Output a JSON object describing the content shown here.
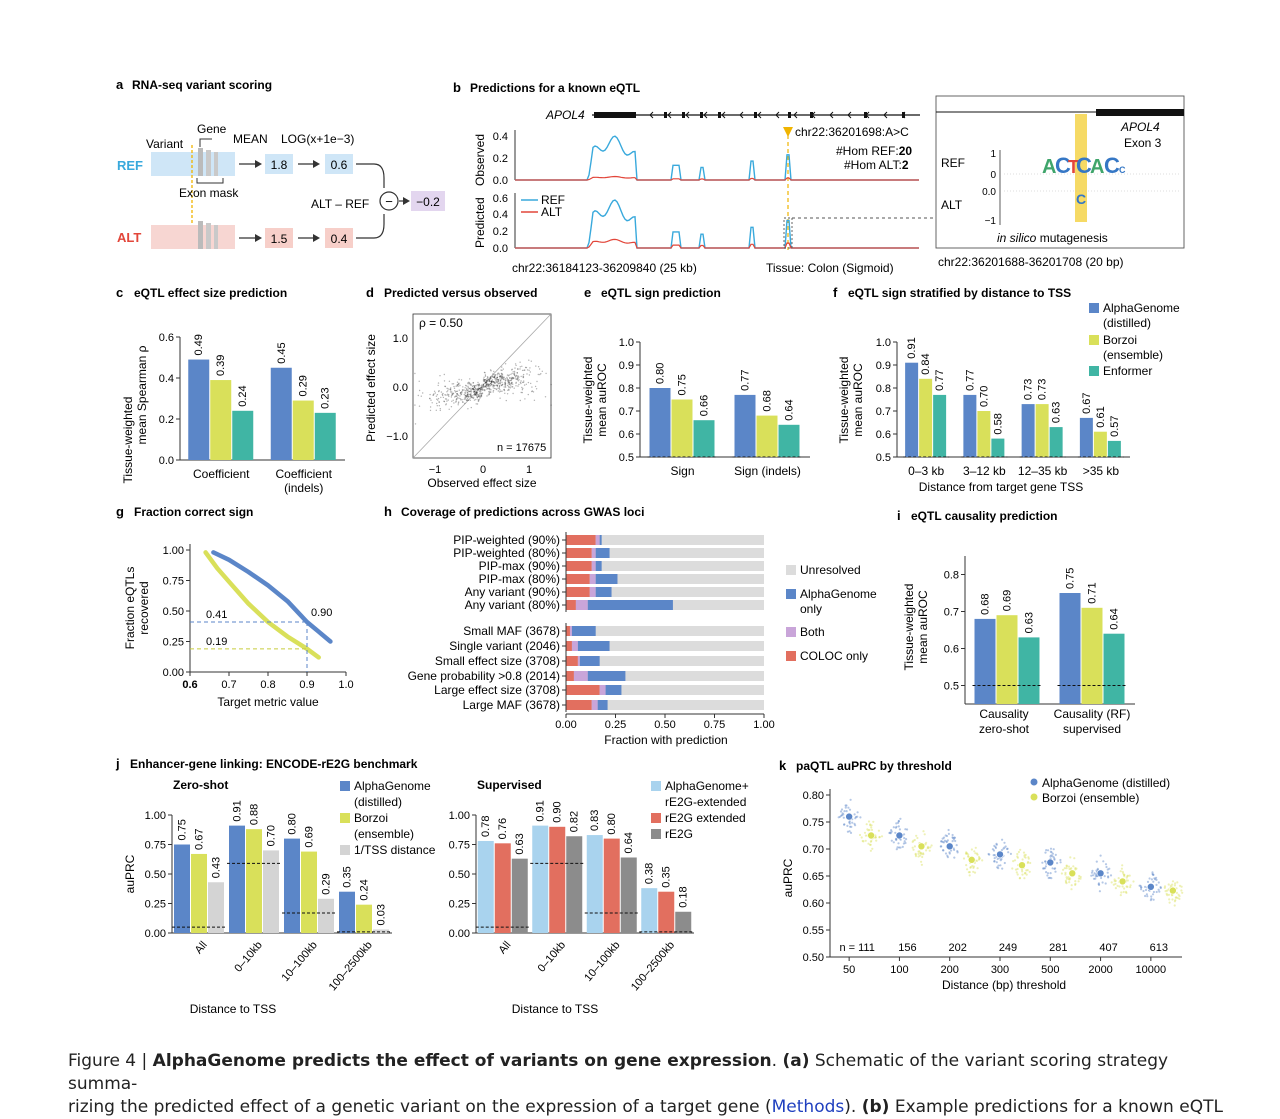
{
  "colors": {
    "alphagenome": "#5b86c8",
    "borzoi": "#d9e05a",
    "enformer": "#40b5a4",
    "unresolved": "#dcdcdc",
    "alpha_only": "#5b86c8",
    "both": "#c9a5d9",
    "coloc": "#e26f5f",
    "ref": "#39a9dc",
    "alt": "#e2463a",
    "gray": "#8c8c8c",
    "lightgray": "#d4d4d4",
    "lightblue": "#a9d3ee",
    "salmon": "#e26f5f"
  },
  "panels": {
    "a": {
      "letter": "a",
      "title": "RNA-seq variant scoring",
      "gene": "Gene",
      "variant": "Variant",
      "mean": "MEAN",
      "log": "LOG(x+1e−3)",
      "ref": "REF",
      "alt": "ALT",
      "exon_mask": "Exon mask",
      "alt_ref": "ALT – REF",
      "ref_mean": "1.8",
      "ref_log": "0.6",
      "alt_mean": "1.5",
      "alt_log": "0.4",
      "diff": "−0.2",
      "minus": "−"
    },
    "b": {
      "letter": "b",
      "title": "Predictions for a known eQTL",
      "gene": "APOL4",
      "variant": "chr22:36201698:A>C",
      "hom_ref_label": "#Hom REF:",
      "hom_ref": "20",
      "hom_alt_label": "#Hom ALT:",
      "hom_alt": "2",
      "observed": "Observed",
      "predicted": "Predicted",
      "legend_ref": "REF",
      "legend_alt": "ALT",
      "obs_ticks": [
        "0.4",
        "0.2",
        "0.0"
      ],
      "pred_ticks": [
        "0.6",
        "0.4",
        "0.2",
        "0.0"
      ],
      "region": "chr22:36184123-36209840 (25 kb)",
      "tissue": "Tissue: Colon (Sigmoid)",
      "inset_gene": "APOL4",
      "inset_exon": "Exon 3",
      "inset_ref": "REF",
      "inset_alt": "ALT",
      "inset_ticks_ref": [
        "1",
        "0"
      ],
      "inset_ticks_alt": [
        "0.0",
        "−1"
      ],
      "mutagenesis_italic": "in silico",
      "mutagenesis": "mutagenesis",
      "inset_region": "chr22:36201688-36201708 (20 bp)",
      "logo_ref_letters": [
        "A",
        "C",
        "T",
        "C",
        "A",
        "C",
        "C"
      ],
      "logo_alt_letter": "C"
    },
    "c": {
      "letter": "c",
      "title": "eQTL effect size prediction",
      "ylabel1": "Tissue-weighted",
      "ylabel2": "mean Spearman ρ",
      "yticks": [
        "0.0",
        "0.2",
        "0.4",
        "0.6"
      ]
    },
    "d": {
      "letter": "d",
      "title": "Predicted versus observed",
      "rho": "ρ = 0.50",
      "n": "n = 17675",
      "xlabel": "Observed effect size",
      "ylabel": "Predicted effect size",
      "xticks": [
        "−1",
        "0",
        "1"
      ],
      "yticks": [
        "1.0",
        "0.0",
        "−1.0"
      ]
    },
    "e": {
      "letter": "e",
      "title": "eQTL sign prediction",
      "ylabel1": "Tissue-weighted",
      "ylabel2": "mean auROC",
      "yticks": [
        "0.5",
        "0.6",
        "0.7",
        "0.8",
        "0.9",
        "1.0"
      ]
    },
    "f": {
      "letter": "f",
      "title": "eQTL sign stratified by distance to TSS",
      "ylabel1": "Tissue-weighted",
      "ylabel2": "mean auROC",
      "xlabel": "Distance from target gene TSS",
      "yticks": [
        "0.5",
        "0.6",
        "0.7",
        "0.8",
        "0.9",
        "1.0"
      ],
      "legend": [
        "AlphaGenome",
        "(distilled)",
        "Borzoi",
        "(ensemble)",
        "Enformer"
      ]
    },
    "g": {
      "letter": "g",
      "title": "Fraction correct sign",
      "ylabel1": "Fraction eQTLs",
      "ylabel2": "recovered",
      "xlabel": "Target metric value",
      "xticks": [
        "0.6",
        "0.7",
        "0.8",
        "0.9",
        "1.0"
      ],
      "yticks": [
        "0.00",
        "0.25",
        "0.50",
        "0.75",
        "1.00"
      ],
      "ann_041": "0.41",
      "ann_019": "0.19",
      "ann_090": "0.90"
    },
    "h": {
      "letter": "h",
      "title": "Coverage of predictions across GWAS loci",
      "xlabel": "Fraction with prediction",
      "xticks": [
        "0.00",
        "0.25",
        "0.50",
        "0.75",
        "1.00"
      ],
      "legend": [
        "Unresolved",
        "AlphaGenome",
        "only",
        "Both",
        "COLOC only"
      ]
    },
    "i": {
      "letter": "i",
      "title": "eQTL causality prediction",
      "ylabel1": "Tissue-weighted",
      "ylabel2": "mean auROC",
      "yticks": [
        "0.5",
        "0.6",
        "0.7",
        "0.8"
      ],
      "cat1a": "Causality",
      "cat1b": "zero-shot",
      "cat2a": "Causality (RF)",
      "cat2b": "supervised"
    },
    "j": {
      "letter": "j",
      "title": "Enhancer-gene linking: ENCODE-rE2G benchmark",
      "zero_shot": "Zero-shot",
      "supervised": "Supervised",
      "ylabel": "auPRC",
      "xlabel": "Distance to TSS",
      "yticks": [
        "0.00",
        "0.25",
        "0.50",
        "0.75",
        "1.00"
      ],
      "legend_zs": [
        "AlphaGenome",
        "(distilled)",
        "Borzoi",
        "(ensemble)",
        "1/TSS distance"
      ],
      "legend_sup": [
        "AlphaGenome+",
        "rE2G-extended",
        "rE2G extended",
        "rE2G"
      ]
    },
    "k": {
      "letter": "k",
      "title": "paQTL auPRC by threshold",
      "ylabel": "auPRC",
      "xlabel": "Distance (bp) threshold",
      "yticks": [
        "0.50",
        "0.55",
        "0.60",
        "0.65",
        "0.70",
        "0.75",
        "0.80"
      ],
      "legend": [
        "AlphaGenome (distilled)",
        "Borzoi (ensemble)"
      ],
      "n_prefix": "n = "
    }
  },
  "chart_data": [
    {
      "panel": "c",
      "type": "bar",
      "categories": [
        "Coefficient",
        "Coefficient\n(indels)"
      ],
      "cat_lines": [
        [
          "Coefficient"
        ],
        [
          "Coefficient",
          "(indels)"
        ]
      ],
      "series": [
        {
          "name": "AlphaGenome",
          "values": [
            0.49,
            0.45
          ]
        },
        {
          "name": "Borzoi",
          "values": [
            0.39,
            0.29
          ]
        },
        {
          "name": "Enformer",
          "values": [
            0.24,
            0.23
          ]
        }
      ],
      "labels": [
        [
          "0.49",
          "0.39",
          "0.24"
        ],
        [
          "0.45",
          "0.29",
          "0.23"
        ]
      ],
      "ylim": [
        0,
        0.6
      ]
    },
    {
      "panel": "e",
      "type": "bar",
      "categories": [
        "Sign",
        "Sign (indels)"
      ],
      "series": [
        {
          "name": "AlphaGenome",
          "values": [
            0.8,
            0.77
          ]
        },
        {
          "name": "Borzoi",
          "values": [
            0.75,
            0.68
          ]
        },
        {
          "name": "Enformer",
          "values": [
            0.66,
            0.64
          ]
        }
      ],
      "labels": [
        [
          "0.80",
          "0.75",
          "0.66"
        ],
        [
          "0.77",
          "0.68",
          "0.64"
        ]
      ],
      "ylim": [
        0.5,
        1.0
      ],
      "baseline": 0.5
    },
    {
      "panel": "f",
      "type": "bar",
      "categories": [
        "0–3 kb",
        "3–12 kb",
        "12–35 kb",
        ">35 kb"
      ],
      "series": [
        {
          "name": "AlphaGenome (distilled)",
          "values": [
            0.91,
            0.77,
            0.73,
            0.67
          ]
        },
        {
          "name": "Borzoi (ensemble)",
          "values": [
            0.84,
            0.7,
            0.73,
            0.61
          ]
        },
        {
          "name": "Enformer",
          "values": [
            0.77,
            0.58,
            0.63,
            0.57
          ]
        }
      ],
      "labels": [
        [
          "0.91",
          "0.84",
          "0.77"
        ],
        [
          "0.77",
          "0.70",
          "0.58"
        ],
        [
          "0.73",
          "0.73",
          "0.63"
        ],
        [
          "0.67",
          "0.61",
          "0.57"
        ]
      ],
      "ylim": [
        0.5,
        1.0
      ],
      "baseline": 0.5
    },
    {
      "panel": "i",
      "type": "bar",
      "categories": [
        "Causality zero-shot",
        "Causality (RF) supervised"
      ],
      "series": [
        {
          "name": "AlphaGenome",
          "values": [
            0.68,
            0.75
          ]
        },
        {
          "name": "Borzoi",
          "values": [
            0.69,
            0.71
          ]
        },
        {
          "name": "Enformer",
          "values": [
            0.63,
            0.64
          ]
        }
      ],
      "labels": [
        [
          "0.68",
          "0.69",
          "0.63"
        ],
        [
          "0.75",
          "0.71",
          "0.64"
        ]
      ],
      "ylim": [
        0.45,
        0.85
      ],
      "baseline": 0.5
    },
    {
      "panel": "h",
      "type": "bar",
      "orientation": "horizontal",
      "stacked": true,
      "categories": [
        "PIP-weighted (90%)",
        "PIP-weighted (80%)",
        "PIP-max (90%)",
        "PIP-max (80%)",
        "Any variant (90%)",
        "Any variant (80%)",
        "Small MAF (3678)",
        "Single variant (2046)",
        "Small effect size (3708)",
        "Gene probability >0.8 (2014)",
        "Large effect size (3708)",
        "Large MAF (3678)"
      ],
      "series": [
        {
          "name": "COLOC only",
          "values": [
            0.15,
            0.13,
            0.13,
            0.12,
            0.12,
            0.05,
            0.02,
            0.03,
            0.06,
            0.04,
            0.17,
            0.13
          ]
        },
        {
          "name": "Both",
          "values": [
            0.02,
            0.02,
            0.02,
            0.03,
            0.03,
            0.06,
            0.01,
            0.03,
            0.01,
            0.07,
            0.03,
            0.03
          ]
        },
        {
          "name": "AlphaGenome only",
          "values": [
            0.01,
            0.07,
            0.03,
            0.11,
            0.08,
            0.43,
            0.12,
            0.16,
            0.1,
            0.19,
            0.08,
            0.05
          ]
        }
      ],
      "xlim": [
        0,
        1
      ]
    },
    {
      "panel": "g",
      "type": "line",
      "series": [
        {
          "name": "AlphaGenome",
          "x": [
            0.66,
            0.7,
            0.75,
            0.8,
            0.85,
            0.9,
            0.93,
            0.96
          ],
          "y": [
            0.98,
            0.92,
            0.82,
            0.71,
            0.58,
            0.41,
            0.33,
            0.25
          ]
        },
        {
          "name": "Borzoi",
          "x": [
            0.64,
            0.67,
            0.7,
            0.75,
            0.8,
            0.85,
            0.9,
            0.93
          ],
          "y": [
            0.98,
            0.85,
            0.74,
            0.56,
            0.41,
            0.29,
            0.19,
            0.12
          ]
        }
      ],
      "xlim": [
        0.6,
        1.0
      ],
      "ylim": [
        0,
        1.0
      ],
      "annotations": [
        0.41,
        0.19,
        0.9
      ]
    },
    {
      "panel": "j_zs",
      "type": "bar",
      "categories": [
        "All",
        "0–10kb",
        "10–100kb",
        "100–2500kb"
      ],
      "series": [
        {
          "name": "AlphaGenome (distilled)",
          "values": [
            0.75,
            0.91,
            0.8,
            0.35
          ]
        },
        {
          "name": "Borzoi (ensemble)",
          "values": [
            0.67,
            0.88,
            0.69,
            0.24
          ]
        },
        {
          "name": "1/TSS distance",
          "values": [
            0.43,
            0.7,
            0.29,
            0.03
          ]
        }
      ],
      "labels": [
        [
          "0.75",
          "0.67",
          "0.43"
        ],
        [
          "0.91",
          "0.88",
          "0.70"
        ],
        [
          "0.80",
          "0.69",
          "0.29"
        ],
        [
          "0.35",
          "0.24",
          "0.03"
        ]
      ],
      "baselines": [
        0.05,
        0.59,
        0.17,
        0.01
      ],
      "ylim": [
        0,
        1.0
      ]
    },
    {
      "panel": "j_sup",
      "type": "bar",
      "categories": [
        "All",
        "0–10kb",
        "10–100kb",
        "100–2500kb"
      ],
      "series": [
        {
          "name": "AlphaGenome+ rE2G-extended",
          "values": [
            0.78,
            0.91,
            0.83,
            0.38
          ]
        },
        {
          "name": "rE2G extended",
          "values": [
            0.76,
            0.9,
            0.8,
            0.35
          ]
        },
        {
          "name": "rE2G",
          "values": [
            0.63,
            0.82,
            0.64,
            0.18
          ]
        }
      ],
      "labels": [
        [
          "0.78",
          "0.76",
          "0.63"
        ],
        [
          "0.91",
          "0.90",
          "0.82"
        ],
        [
          "0.83",
          "0.80",
          "0.64"
        ],
        [
          "0.38",
          "0.35",
          "0.18"
        ]
      ],
      "baselines": [
        0.05,
        0.59,
        0.17,
        0.01
      ],
      "ylim": [
        0,
        1.0
      ]
    },
    {
      "panel": "k",
      "type": "scatter",
      "categories": [
        "50",
        "100",
        "200",
        "300",
        "500",
        "2000",
        "10000"
      ],
      "n": [
        "n = 111",
        "156",
        "202",
        "249",
        "281",
        "407",
        "613"
      ],
      "series": [
        {
          "name": "AlphaGenome (distilled)",
          "values": [
            0.76,
            0.725,
            0.705,
            0.69,
            0.675,
            0.655,
            0.63
          ]
        },
        {
          "name": "Borzoi (ensemble)",
          "values": [
            0.725,
            0.705,
            0.68,
            0.67,
            0.655,
            0.64,
            0.623
          ]
        }
      ],
      "ylim": [
        0.5,
        0.8
      ]
    }
  ],
  "caption": {
    "line1_prefix": "Figure 4 | ",
    "line1_bold": "AlphaGenome predicts the effect of variants on gene expression",
    "line1_rest": ". ",
    "line1_tag": "(a)",
    "line1_text": " Schematic of the variant scoring strategy summa-",
    "line2_text": "rizing the predicted effect of a genetic variant on the expression of a target gene (",
    "line2_link": "Methods",
    "line2_mid": "). ",
    "line2_tag": "(b)",
    "line2_end": " Example predictions for a known eQTL"
  }
}
